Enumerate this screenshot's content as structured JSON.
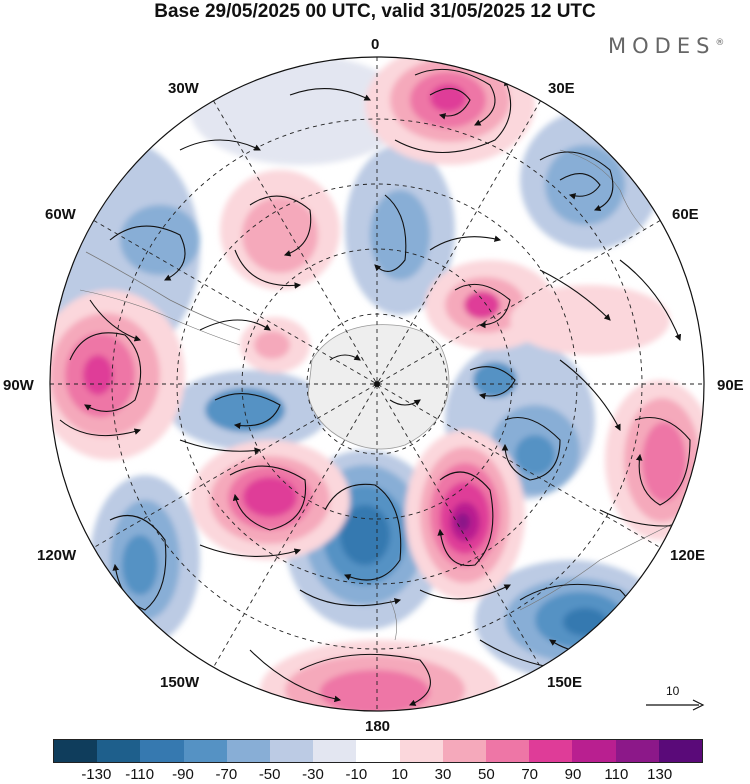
{
  "title": "Base 29/05/2025 00 UTC, valid 31/05/2025 12 UTC",
  "brand": "MODES",
  "brand_mark": "®",
  "longitude_labels": [
    "0",
    "30E",
    "60E",
    "90E",
    "120E",
    "150E",
    "180",
    "150W",
    "120W",
    "90W",
    "60W",
    "30W"
  ],
  "reference_vector": {
    "label": "10",
    "icon": "arrow-right-icon"
  },
  "colorbar": {
    "colors": [
      "#0f3d5c",
      "#1e5f8c",
      "#3679b0",
      "#5592c4",
      "#88aed6",
      "#bccbe4",
      "#e3e6f1",
      "#ffffff",
      "#fbd7dc",
      "#f5a9bb",
      "#ee76a6",
      "#df3c98",
      "#b91f90",
      "#8c1889",
      "#5a0a79"
    ],
    "ticks": [
      "-130",
      "-110",
      "-90",
      "-70",
      "-50",
      "-30",
      "-10",
      "10",
      "30",
      "50",
      "70",
      "90",
      "110",
      "130"
    ]
  }
}
